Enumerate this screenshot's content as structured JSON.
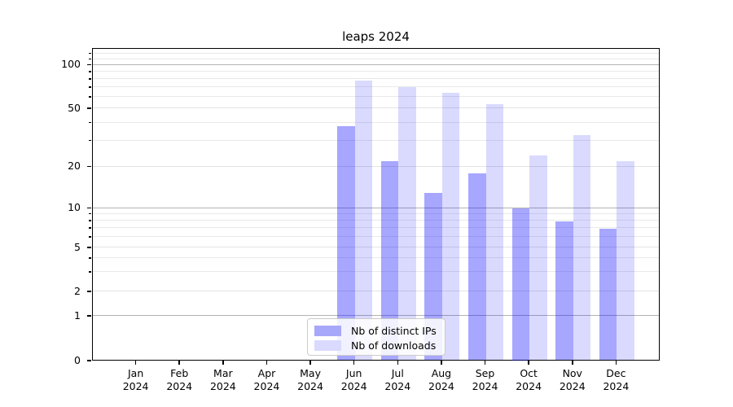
{
  "title": "leaps 2024",
  "chart_data": {
    "type": "bar",
    "title": "leaps 2024",
    "categories": [
      "Jan",
      "Feb",
      "Mar",
      "Apr",
      "May",
      "Jun",
      "Jul",
      "Aug",
      "Sep",
      "Oct",
      "Nov",
      "Dec"
    ],
    "category_year": "2024",
    "series": [
      {
        "name": "Nb of distinct IPs",
        "color_hex": "#a8a8fa",
        "fill_rgba": "rgba(0,0,255,0.345)",
        "values": [
          0,
          0,
          0,
          0,
          0,
          38,
          22,
          13,
          18,
          10,
          8,
          7
        ]
      },
      {
        "name": "Nb of downloads",
        "color_hex": "#dadaff",
        "fill_rgba": "rgba(0,0,255,0.145)",
        "values": [
          0,
          0,
          0,
          0,
          0,
          79,
          71,
          65,
          54,
          24,
          33,
          22
        ]
      }
    ],
    "xlabel": "",
    "ylabel": "",
    "yscale": "symlog",
    "ylim": [
      0,
      130
    ],
    "ytick_labels": [
      "100",
      "50",
      "20",
      "10",
      "5",
      "2",
      "1",
      "0"
    ],
    "ytick_values": [
      100,
      50,
      20,
      10,
      5,
      2,
      1,
      0
    ],
    "ytick_major_values": [
      100,
      10,
      1
    ],
    "grid_minor_values": [
      3,
      4,
      6,
      7,
      8,
      9,
      30,
      40,
      60,
      70,
      80,
      90,
      110,
      120
    ],
    "grid": true,
    "legend_position": "lower center",
    "axis_color": "#000000",
    "grid_major_color": "#b3b3b3",
    "grid_minor_color": "#e9e9e9"
  }
}
